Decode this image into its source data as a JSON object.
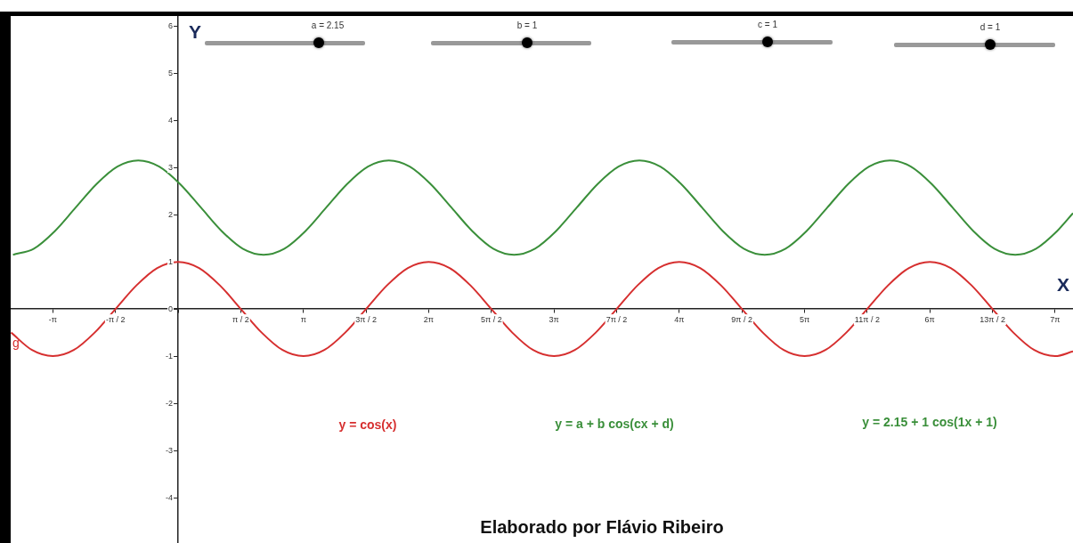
{
  "chart_data": {
    "type": "line",
    "xlabel": "X",
    "ylabel": "Y",
    "xlim": [
      -4.2,
      22.44
    ],
    "ylim": [
      -4.96,
      6.21
    ],
    "xticks": [
      {
        "value": -3.1416,
        "label": "-π"
      },
      {
        "value": -1.5708,
        "label": "-π / 2"
      },
      {
        "value": 0,
        "label": null
      },
      {
        "value": 1.5708,
        "label": "π / 2"
      },
      {
        "value": 3.1416,
        "label": "π"
      },
      {
        "value": 4.7124,
        "label": "3π / 2"
      },
      {
        "value": 6.2832,
        "label": "2π"
      },
      {
        "value": 7.854,
        "label": "5π / 2"
      },
      {
        "value": 9.4248,
        "label": "3π"
      },
      {
        "value": 10.9956,
        "label": "7π / 2"
      },
      {
        "value": 12.5664,
        "label": "4π"
      },
      {
        "value": 14.1372,
        "label": "9π / 2"
      },
      {
        "value": 15.708,
        "label": "5π"
      },
      {
        "value": 17.2788,
        "label": "11π / 2"
      },
      {
        "value": 18.8496,
        "label": "6π"
      },
      {
        "value": 20.4204,
        "label": "13π / 2"
      },
      {
        "value": 21.9911,
        "label": "7π"
      }
    ],
    "yticks": [
      -4,
      -3,
      -2,
      -1,
      0,
      1,
      2,
      3,
      4,
      5,
      6
    ],
    "grid": false,
    "legend": false,
    "marker": "none",
    "line_style": "solid",
    "series": [
      {
        "name": "g",
        "color": "#d62f2f",
        "x": [
          -4.189,
          -3.665,
          -3.142,
          -2.618,
          -2.094,
          -1.571,
          -1.047,
          -0.524,
          0,
          0.524,
          1.047,
          1.571,
          2.094,
          2.618,
          3.142,
          3.665,
          4.189,
          4.712,
          5.236,
          5.76,
          6.283,
          6.807,
          7.33,
          7.854,
          8.378,
          8.901,
          9.425,
          9.948,
          10.472,
          10.996,
          11.519,
          12.043,
          12.566,
          13.09,
          13.614,
          14.137,
          14.661,
          15.184,
          15.708,
          16.232,
          16.755,
          17.279,
          17.802,
          18.326,
          18.85,
          19.373,
          19.897,
          20.42,
          20.944,
          21.468,
          21.991,
          22.44
        ],
        "values": [
          -0.5,
          -0.87,
          -1,
          -0.87,
          -0.5,
          0,
          0.5,
          0.87,
          1,
          0.87,
          0.5,
          0,
          -0.5,
          -0.87,
          -1,
          -0.87,
          -0.5,
          0,
          0.5,
          0.87,
          1,
          0.87,
          0.5,
          0,
          -0.5,
          -0.87,
          -1,
          -0.87,
          -0.5,
          0,
          0.5,
          0.87,
          1,
          0.87,
          0.5,
          0,
          -0.5,
          -0.87,
          -1,
          -0.87,
          -0.5,
          0,
          0.5,
          0.87,
          1,
          0.87,
          0.5,
          0,
          -0.5,
          -0.87,
          -1,
          -0.9
        ]
      },
      {
        "color": "#3a8f3a",
        "x": [
          -4.142,
          -3.618,
          -3.094,
          -2.571,
          -2.047,
          -1.524,
          -1,
          -0.476,
          0.047,
          0.571,
          1.094,
          1.618,
          2.142,
          2.665,
          3.189,
          3.712,
          4.236,
          4.76,
          5.283,
          5.807,
          6.33,
          6.854,
          7.378,
          7.901,
          8.425,
          8.948,
          9.472,
          9.996,
          10.519,
          11.043,
          11.566,
          12.09,
          12.614,
          13.137,
          13.661,
          14.184,
          14.708,
          15.232,
          15.755,
          16.279,
          16.802,
          17.326,
          17.85,
          18.373,
          18.897,
          19.42,
          19.944,
          20.468,
          20.991,
          21.515,
          22.038,
          22.44
        ],
        "values": [
          1.15,
          1.28,
          1.65,
          2.15,
          2.65,
          3.02,
          3.15,
          3.02,
          2.65,
          2.15,
          1.65,
          1.28,
          1.15,
          1.28,
          1.65,
          2.15,
          2.65,
          3.02,
          3.15,
          3.02,
          2.65,
          2.15,
          1.65,
          1.28,
          1.15,
          1.28,
          1.65,
          2.15,
          2.65,
          3.02,
          3.15,
          3.02,
          2.65,
          2.15,
          1.65,
          1.28,
          1.15,
          1.28,
          1.65,
          2.15,
          2.65,
          3.02,
          3.15,
          3.02,
          2.65,
          2.15,
          1.65,
          1.28,
          1.15,
          1.28,
          1.65,
          2.03
        ]
      }
    ],
    "annotations": [
      "a = 2.15",
      "b = 1",
      "c = 1",
      "d = 1",
      "y = cos(x)",
      "y = a + b cos(cx + d)",
      "y = 2.15 + 1 cos(1x + 1)",
      "Elaborado por Flávio Ribeiro"
    ]
  }
}
